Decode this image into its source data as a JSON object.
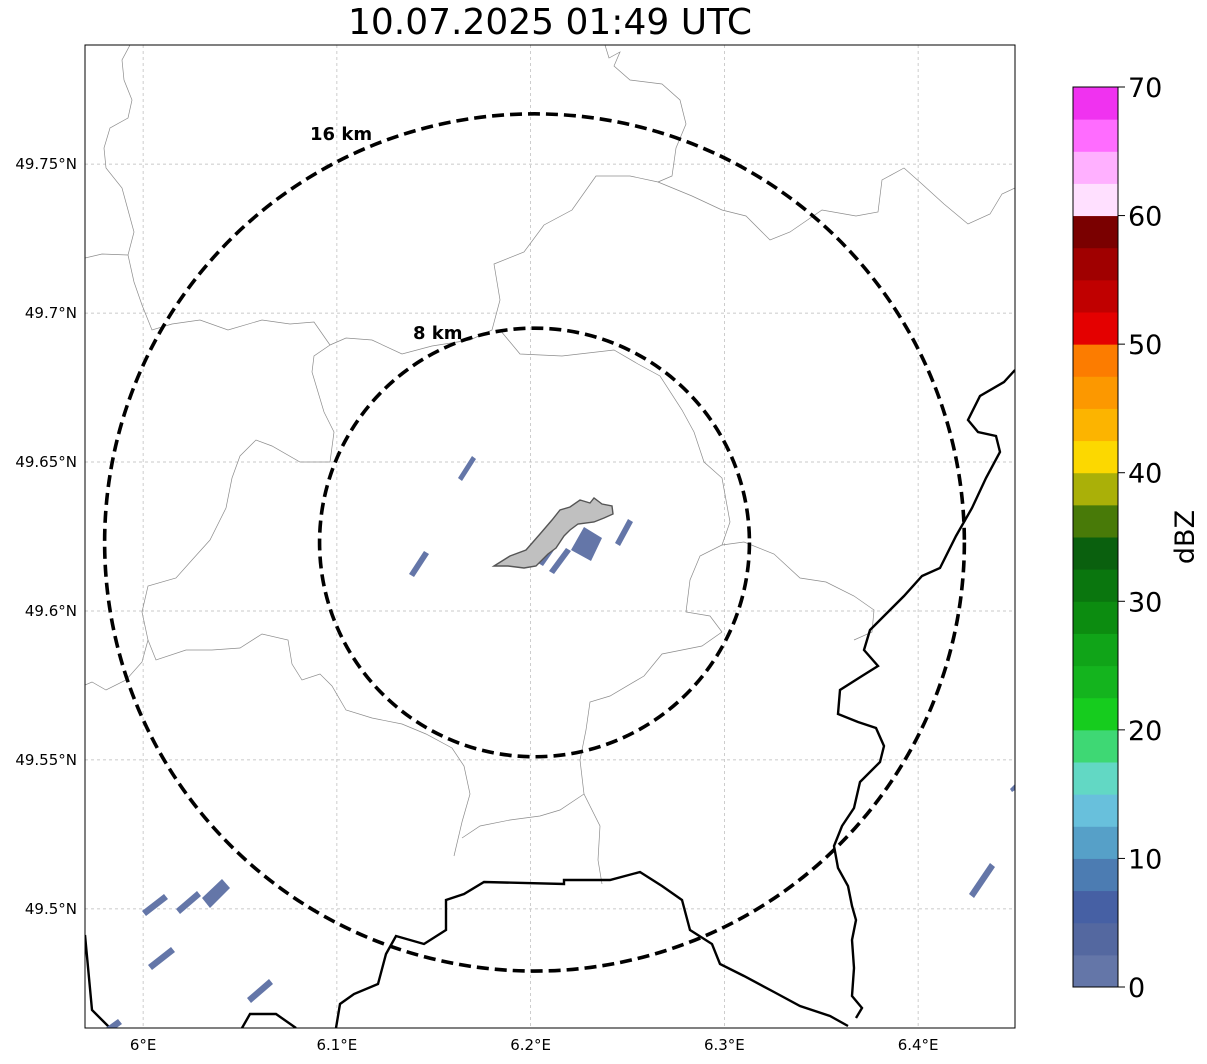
{
  "title": "10.07.2025 01:49 UTC",
  "map": {
    "lon_range": [
      5.97,
      6.45
    ],
    "lat_range": [
      49.46,
      49.79
    ],
    "lon_ticks": [
      {
        "value": 6.0,
        "label": "6°E"
      },
      {
        "value": 6.1,
        "label": "6.1°E"
      },
      {
        "value": 6.2,
        "label": "6.2°E"
      },
      {
        "value": 6.3,
        "label": "6.3°E"
      },
      {
        "value": 6.4,
        "label": "6.4°E"
      }
    ],
    "lat_ticks": [
      {
        "value": 49.75,
        "label": "49.75°N"
      },
      {
        "value": 49.7,
        "label": "49.7°N"
      },
      {
        "value": 49.65,
        "label": "49.65°N"
      },
      {
        "value": 49.6,
        "label": "49.6°N"
      },
      {
        "value": 49.55,
        "label": "49.55°N"
      },
      {
        "value": 49.5,
        "label": "49.5°N"
      }
    ],
    "grid": true,
    "center": {
      "lon": 6.202,
      "lat": 49.623
    },
    "range_rings": [
      {
        "radius_km": 8,
        "label": "8 km"
      },
      {
        "radius_km": 16,
        "label": "16 km"
      }
    ]
  },
  "colorbar": {
    "label": "dBZ",
    "min": 0,
    "max": 70,
    "tick_values": [
      0,
      10,
      20,
      30,
      40,
      50,
      60,
      70
    ],
    "tick_labels": [
      "0",
      "10",
      "20",
      "30",
      "40",
      "50",
      "60",
      "70"
    ],
    "colors": [
      "#6476a8",
      "#5468a0",
      "#4660a4",
      "#4c7cb2",
      "#56a0c8",
      "#68c0dc",
      "#62d8c4",
      "#3ed874",
      "#16cc1e",
      "#14b41e",
      "#10a418",
      "#0c8c10",
      "#0a760e",
      "#0a600e",
      "#487a08",
      "#aab008",
      "#fcd800",
      "#fcb400",
      "#fc9800",
      "#fc7c00",
      "#e40000",
      "#c00000",
      "#a00000",
      "#7a0000",
      "#ffe0ff",
      "#ffb0ff",
      "#ff6cff",
      "#f032f0"
    ]
  }
}
